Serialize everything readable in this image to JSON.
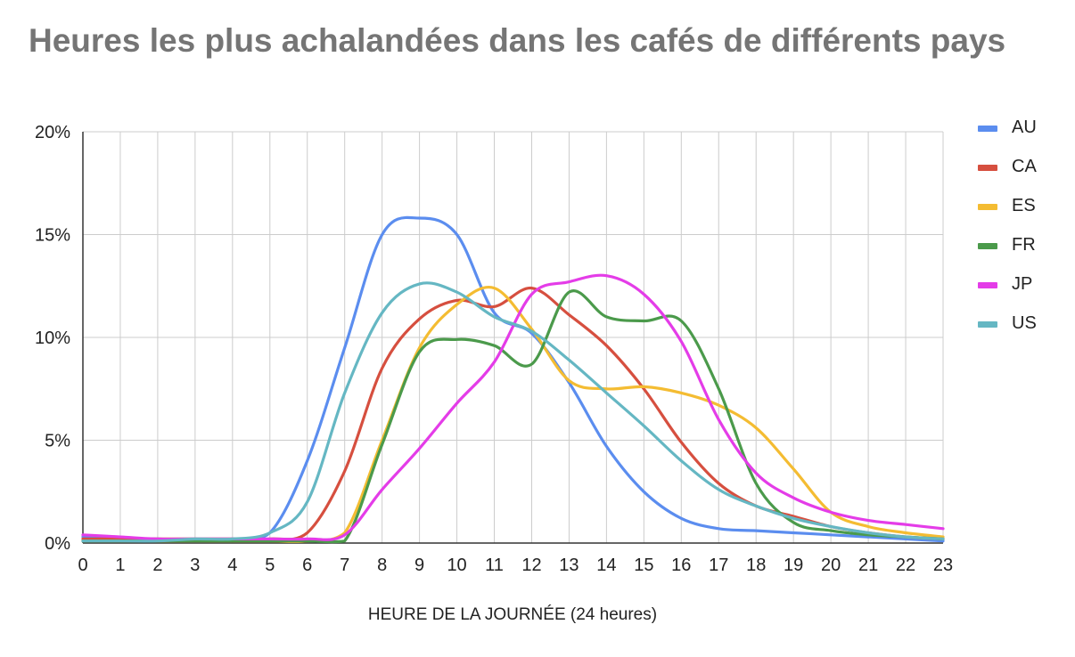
{
  "chart_data": {
    "type": "line",
    "title": "Heures les plus achalandées dans les cafés de différents pays",
    "xlabel": "HEURE DE LA JOURNÉE (24 heures)",
    "ylabel": "",
    "x": [
      0,
      1,
      2,
      3,
      4,
      5,
      6,
      7,
      8,
      9,
      10,
      11,
      12,
      13,
      14,
      15,
      16,
      17,
      18,
      19,
      20,
      21,
      22,
      23
    ],
    "x_tick_labels": [
      "0",
      "1",
      "2",
      "3",
      "4",
      "5",
      "6",
      "7",
      "8",
      "9",
      "10",
      "11",
      "12",
      "13",
      "14",
      "15",
      "16",
      "17",
      "18",
      "19",
      "20",
      "21",
      "22",
      "23"
    ],
    "xlim": [
      0,
      23
    ],
    "ylim": [
      0,
      20
    ],
    "y_ticks": [
      0,
      5,
      10,
      15,
      20
    ],
    "y_tick_labels": [
      "0%",
      "5%",
      "10%",
      "15%",
      "20%"
    ],
    "grid": true,
    "legend_position": "right",
    "series": [
      {
        "name": "AU",
        "color": "#5b8def",
        "values": [
          0.3,
          0.2,
          0.2,
          0.1,
          0.2,
          0.5,
          4.0,
          9.5,
          15.0,
          15.8,
          15.0,
          11.2,
          10.2,
          7.8,
          4.7,
          2.5,
          1.2,
          0.7,
          0.6,
          0.5,
          0.4,
          0.3,
          0.2,
          0.1
        ]
      },
      {
        "name": "CA",
        "color": "#d64f3f",
        "values": [
          0.2,
          0.2,
          0.2,
          0.2,
          0.2,
          0.2,
          0.5,
          3.5,
          8.5,
          10.9,
          11.8,
          11.5,
          12.4,
          11.1,
          9.6,
          7.5,
          4.9,
          2.9,
          1.8,
          1.3,
          0.8,
          0.5,
          0.3,
          0.2
        ]
      },
      {
        "name": "ES",
        "color": "#f4bc32",
        "values": [
          0.1,
          0.1,
          0.1,
          0.1,
          0.1,
          0.1,
          0.1,
          0.5,
          5.0,
          9.5,
          11.6,
          12.4,
          10.4,
          7.9,
          7.5,
          7.6,
          7.3,
          6.7,
          5.6,
          3.6,
          1.5,
          0.8,
          0.5,
          0.3
        ]
      },
      {
        "name": "FR",
        "color": "#4b9a4b",
        "values": [
          0.1,
          0.1,
          0.1,
          0.1,
          0.1,
          0.1,
          0.1,
          0.1,
          4.8,
          9.3,
          9.9,
          9.6,
          8.7,
          12.2,
          11.0,
          10.8,
          10.8,
          7.5,
          2.9,
          1.0,
          0.6,
          0.4,
          0.3,
          0.2
        ]
      },
      {
        "name": "JP",
        "color": "#e43ce8",
        "values": [
          0.4,
          0.3,
          0.2,
          0.2,
          0.2,
          0.2,
          0.2,
          0.4,
          2.6,
          4.6,
          6.8,
          8.8,
          12.1,
          12.7,
          13.0,
          12.1,
          9.8,
          6.0,
          3.4,
          2.2,
          1.5,
          1.1,
          0.9,
          0.7
        ]
      },
      {
        "name": "US",
        "color": "#65b7c3",
        "values": [
          0.1,
          0.1,
          0.1,
          0.2,
          0.2,
          0.5,
          2.0,
          7.3,
          11.2,
          12.6,
          12.2,
          11.0,
          10.3,
          8.9,
          7.3,
          5.7,
          4.0,
          2.6,
          1.8,
          1.2,
          0.8,
          0.5,
          0.3,
          0.2
        ]
      }
    ]
  }
}
